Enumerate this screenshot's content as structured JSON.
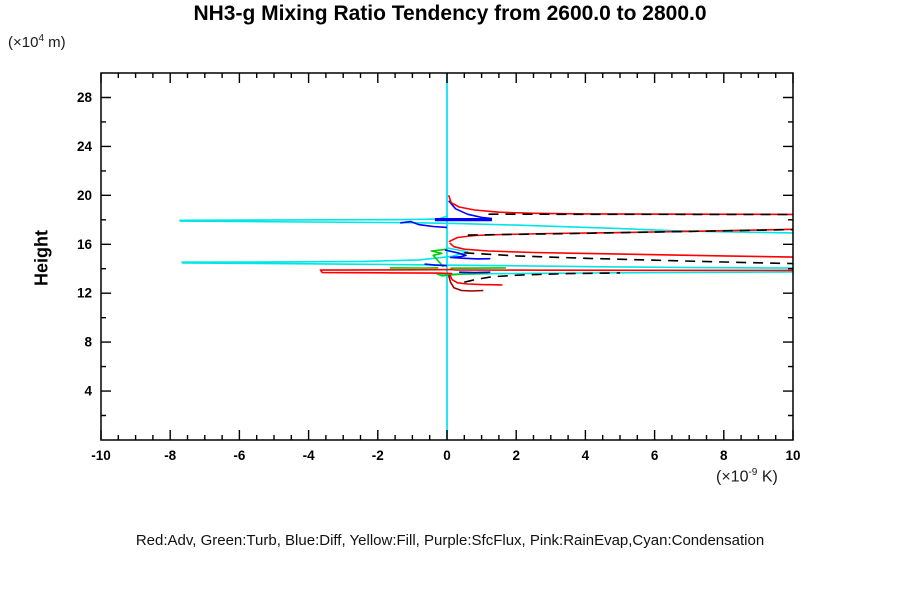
{
  "chart_data": {
    "type": "line",
    "title": "NH3-g Mixing Ratio Tendency from 2600.0 to 2800.0",
    "ylabel": "Height",
    "y_unit": {
      "prefix": "(×10",
      "sup": "4",
      "suffix": " m)"
    },
    "x_unit": {
      "prefix": "(×10",
      "sup": "-9",
      "suffix": " K)"
    },
    "xlim": [
      -10,
      10
    ],
    "ylim": [
      0,
      30
    ],
    "grid": false,
    "x_ticks": {
      "major": [
        -10,
        -8,
        -6,
        -4,
        -2,
        0,
        2,
        4,
        6,
        8,
        10
      ],
      "labels": [
        "-10",
        "-8",
        "-6",
        "-4",
        "-2",
        "0",
        "2",
        "4",
        "6",
        "8",
        "10"
      ],
      "minor_step": 0.5
    },
    "y_ticks": {
      "major": [
        4,
        8,
        12,
        16,
        20,
        24,
        28
      ],
      "labels": [
        "4",
        "8",
        "12",
        "16",
        "20",
        "24",
        "28"
      ],
      "minor_step": 2
    },
    "legend": "Red:Adv, Green:Turb, Blue:Diff, Yellow:Fill, Purple:SfcFlux, Pink:RainEvap,Cyan:Condensation",
    "colors": {
      "adv": "#ff0000",
      "adv_dark": "#990000",
      "turb": "#00cc00",
      "diff": "#0000ff",
      "fill": "#ffff00",
      "sfcflux": "#9900cc",
      "rainevap": "#ff69b4",
      "condensation": "#00e6e6",
      "zero_line": "#00ffff",
      "total": "#000000"
    },
    "series": [
      {
        "name": "fill-zero-line",
        "color": "#ffff00",
        "width": 1.6,
        "points": [
          [
            0,
            30
          ],
          [
            0,
            0
          ]
        ]
      },
      {
        "name": "sfcflux-zero-line",
        "color": "#9900cc",
        "width": 1.6,
        "points": [
          [
            0,
            30
          ],
          [
            0,
            0
          ]
        ]
      },
      {
        "name": "rainevap-zero-line",
        "color": "#ff69b4",
        "width": 1.6,
        "points": [
          [
            0,
            30
          ],
          [
            0,
            0
          ]
        ]
      },
      {
        "name": "condensation-zero-line",
        "color": "#00ffff",
        "width": 1.7,
        "points": [
          [
            0,
            30
          ],
          [
            0,
            0
          ]
        ]
      },
      {
        "name": "condensation-upper-spike",
        "color": "#00e6e6",
        "width": 1.6,
        "points": [
          [
            0,
            18.3
          ],
          [
            -0.25,
            18.06
          ],
          [
            -1.5,
            18.01
          ],
          [
            -4.5,
            17.99
          ],
          [
            -7.72,
            17.96
          ],
          [
            -7.7,
            17.89
          ],
          [
            -4,
            17.82
          ],
          [
            -1,
            17.76
          ],
          [
            0.35,
            17.69
          ],
          [
            2,
            17.57
          ],
          [
            3.5,
            17.43
          ],
          [
            5,
            17.28
          ],
          [
            6.6,
            17.1
          ],
          [
            8.2,
            17.0
          ],
          [
            10,
            16.93
          ]
        ]
      },
      {
        "name": "condensation-middle-spike",
        "color": "#00e6e6",
        "width": 1.6,
        "points": [
          [
            0,
            15.7
          ],
          [
            0.6,
            15.38
          ],
          [
            0.15,
            15.02
          ],
          [
            -0.8,
            14.72
          ],
          [
            -2.4,
            14.6
          ],
          [
            -4.6,
            14.56
          ],
          [
            -7.66,
            14.53
          ],
          [
            -7.64,
            14.47
          ],
          [
            -4,
            14.4
          ],
          [
            -1.2,
            14.33
          ],
          [
            0.3,
            14.29
          ],
          [
            2,
            14.24
          ],
          [
            4.5,
            14.16
          ],
          [
            7,
            14.1
          ],
          [
            10,
            14.05
          ]
        ]
      },
      {
        "name": "condensation-lower-branch",
        "color": "#00e6e6",
        "width": 1.6,
        "points": [
          [
            -0.35,
            13.64
          ],
          [
            -0.1,
            13.52
          ],
          [
            0.25,
            13.56
          ],
          [
            1.6,
            13.6
          ],
          [
            4,
            13.65
          ],
          [
            7,
            13.7
          ],
          [
            10,
            13.74
          ]
        ]
      },
      {
        "name": "turb-left-branch",
        "color": "#00cc00",
        "width": 1.6,
        "points": [
          [
            -1.65,
            14.07
          ],
          [
            -0.6,
            14.06
          ],
          [
            -0.25,
            14.08
          ]
        ]
      },
      {
        "name": "turb-center-spike",
        "color": "#00cc00",
        "width": 1.6,
        "points": [
          [
            -0.1,
            14.15
          ],
          [
            -0.4,
            15.1
          ],
          [
            -0.15,
            15.25
          ],
          [
            -0.45,
            15.45
          ],
          [
            0,
            15.6
          ]
        ]
      },
      {
        "name": "turb-right-branch",
        "color": "#00cc00",
        "width": 1.6,
        "points": [
          [
            0.1,
            14.04
          ],
          [
            1.0,
            14.05
          ],
          [
            1.7,
            14.07
          ]
        ]
      },
      {
        "name": "turb-lower-branch",
        "color": "#00cc00",
        "width": 1.6,
        "points": [
          [
            -0.3,
            13.6
          ],
          [
            -0.15,
            13.42
          ],
          [
            0.1,
            13.5
          ],
          [
            0.5,
            13.58
          ],
          [
            1.2,
            13.62
          ]
        ]
      },
      {
        "name": "diff-upper-curve",
        "color": "#0000ff",
        "width": 1.6,
        "points": [
          [
            0.05,
            19.55
          ],
          [
            0.25,
            18.9
          ],
          [
            0.6,
            18.45
          ],
          [
            1.0,
            18.2
          ],
          [
            1.3,
            18.1
          ]
        ]
      },
      {
        "name": "diff-upper-thick-segment",
        "color": "#0000ff",
        "width": 3.2,
        "points": [
          [
            -0.35,
            18.02
          ],
          [
            1.3,
            18.02
          ]
        ]
      },
      {
        "name": "diff-upper-left-branch",
        "color": "#0000ff",
        "width": 1.6,
        "points": [
          [
            -1.35,
            17.75
          ],
          [
            -1.05,
            17.85
          ],
          [
            -0.8,
            17.6
          ],
          [
            -0.4,
            17.45
          ],
          [
            0,
            17.38
          ]
        ]
      },
      {
        "name": "diff-middle-zigzag",
        "color": "#0000ff",
        "width": 1.6,
        "points": [
          [
            -0.06,
            15.53
          ],
          [
            0.3,
            15.3
          ],
          [
            0.55,
            15.1
          ],
          [
            0.4,
            14.98
          ],
          [
            0.1,
            14.92
          ],
          [
            0.5,
            14.85
          ],
          [
            0.9,
            14.8
          ],
          [
            1.25,
            14.82
          ]
        ]
      },
      {
        "name": "diff-middle-left-branch",
        "color": "#0000ff",
        "width": 1.6,
        "points": [
          [
            -0.65,
            14.38
          ],
          [
            -0.35,
            14.3
          ],
          [
            0,
            14.25
          ]
        ]
      },
      {
        "name": "diff-lower-branch",
        "color": "#0000ff",
        "width": 1.6,
        "points": [
          [
            0.35,
            13.72
          ],
          [
            0.8,
            13.68
          ],
          [
            1.25,
            13.72
          ]
        ]
      },
      {
        "name": "adv-upper-curve",
        "color": "#ff0000",
        "width": 1.6,
        "points": [
          [
            0.05,
            20.0
          ],
          [
            0.12,
            19.4
          ],
          [
            0.35,
            19.05
          ],
          [
            0.8,
            18.8
          ],
          [
            1.5,
            18.62
          ],
          [
            2.5,
            18.53
          ],
          [
            4,
            18.48
          ],
          [
            7,
            18.46
          ],
          [
            10,
            18.44
          ]
        ]
      },
      {
        "name": "adv-upper-return-branch",
        "color": "#ff0000",
        "width": 1.6,
        "points": [
          [
            0.05,
            16.2
          ],
          [
            0.3,
            16.55
          ],
          [
            0.8,
            16.72
          ],
          [
            1.6,
            16.8
          ],
          [
            3,
            16.88
          ],
          [
            5,
            16.95
          ],
          [
            7.5,
            17.08
          ],
          [
            10,
            17.22
          ]
        ]
      },
      {
        "name": "adv-middle-curve",
        "color": "#ff0000",
        "width": 1.6,
        "points": [
          [
            0.08,
            16.1
          ],
          [
            0.2,
            15.8
          ],
          [
            0.5,
            15.6
          ],
          [
            1.2,
            15.45
          ],
          [
            2.5,
            15.33
          ],
          [
            4,
            15.25
          ],
          [
            6,
            15.15
          ],
          [
            8,
            15.05
          ],
          [
            10,
            14.95
          ]
        ]
      },
      {
        "name": "adv-left-spike",
        "color": "#ff0000",
        "width": 1.6,
        "points": [
          [
            0.2,
            13.93
          ],
          [
            -1,
            13.91
          ],
          [
            -3.66,
            13.89
          ],
          [
            -3.6,
            13.68
          ],
          [
            -1.5,
            13.66
          ],
          [
            -0.3,
            13.64
          ],
          [
            0.15,
            13.6
          ]
        ]
      },
      {
        "name": "adv-right-flat-branch",
        "color": "#ff0000",
        "width": 1.6,
        "points": [
          [
            0.2,
            13.9
          ],
          [
            3,
            13.88
          ],
          [
            6,
            13.87
          ],
          [
            10,
            13.86
          ]
        ]
      },
      {
        "name": "adv-lower-dip",
        "color": "#ff0000",
        "width": 1.6,
        "points": [
          [
            0.08,
            13.5
          ],
          [
            0.15,
            13.1
          ],
          [
            0.3,
            12.85
          ],
          [
            0.6,
            12.75
          ],
          [
            1.0,
            12.7
          ],
          [
            1.6,
            12.68
          ]
        ]
      },
      {
        "name": "adv-dark-lower-curl",
        "color": "#990000",
        "width": 1.6,
        "points": [
          [
            0.05,
            13.45
          ],
          [
            0.1,
            12.9
          ],
          [
            0.2,
            12.45
          ],
          [
            0.42,
            12.22
          ],
          [
            0.72,
            12.18
          ],
          [
            1.05,
            12.22
          ]
        ]
      },
      {
        "name": "total-upper-dashed",
        "color": "#000000",
        "width": 1.6,
        "dash": "10 7",
        "points": [
          [
            1.2,
            18.46
          ],
          [
            10,
            18.43
          ]
        ]
      },
      {
        "name": "total-upper2-dashed",
        "color": "#000000",
        "width": 1.6,
        "dash": "10 7",
        "points": [
          [
            0.6,
            16.75
          ],
          [
            4,
            16.9
          ],
          [
            7,
            17.05
          ],
          [
            10,
            17.2
          ]
        ]
      },
      {
        "name": "total-middle-dashed",
        "color": "#000000",
        "width": 1.6,
        "dash": "10 7",
        "points": [
          [
            0.5,
            15.3
          ],
          [
            2,
            15.05
          ],
          [
            4,
            14.85
          ],
          [
            6,
            14.7
          ],
          [
            8,
            14.55
          ],
          [
            10,
            14.42
          ]
        ]
      },
      {
        "name": "total-lower-dashed",
        "color": "#000000",
        "width": 1.6,
        "dash": "10 7",
        "points": [
          [
            0.5,
            12.9
          ],
          [
            0.8,
            13.1
          ],
          [
            1.3,
            13.35
          ],
          [
            2.2,
            13.5
          ],
          [
            3.5,
            13.6
          ],
          [
            5,
            13.66
          ]
        ]
      }
    ]
  }
}
